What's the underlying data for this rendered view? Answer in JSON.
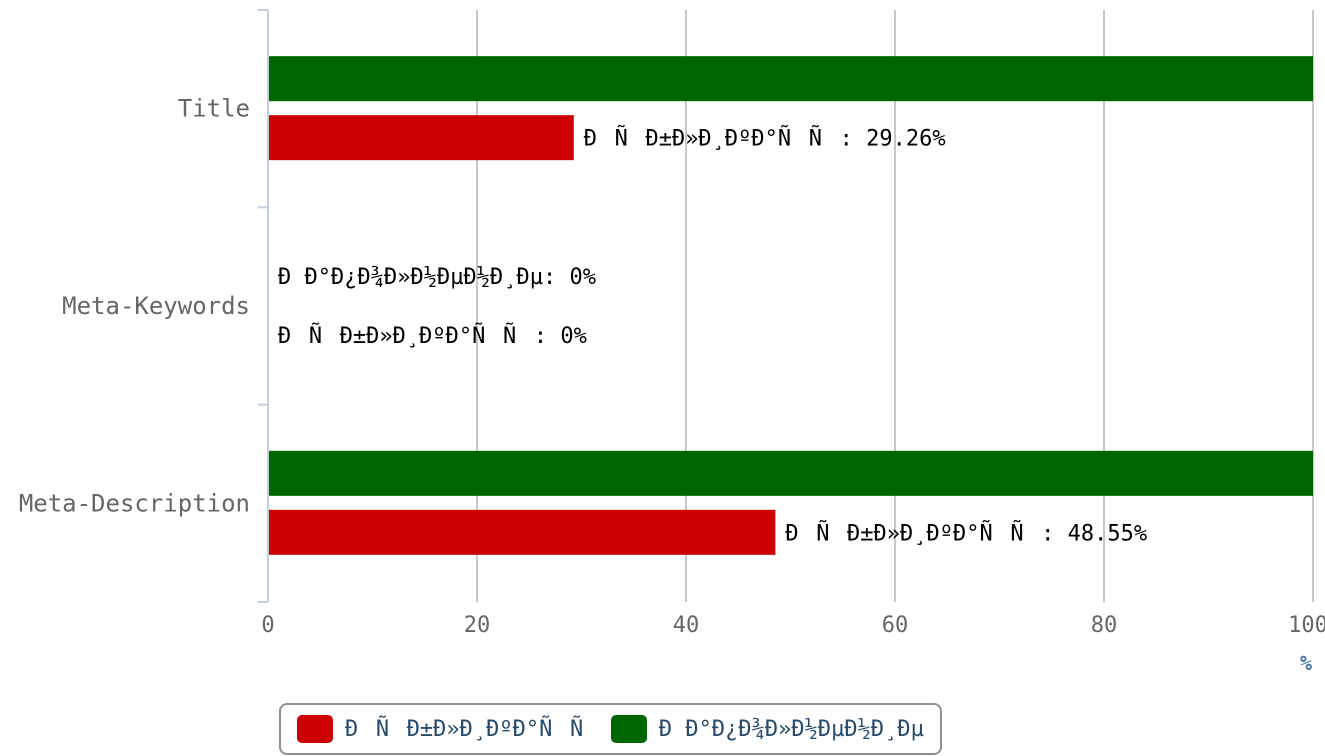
{
  "chart_data": {
    "type": "bar",
    "orientation": "horizontal",
    "categories": [
      "Title",
      "Meta-Keywords",
      "Meta-Description"
    ],
    "series": [
      {
        "name": "ÐÐ°Ð¿Ð¾Ð»Ð½ÐµÐ½Ð¸Ðµ",
        "color": "#006600",
        "values": [
          100,
          0,
          100
        ],
        "data_labels": [
          "",
          "ÐÐ°Ð¿Ð¾Ð»Ð½ÐµÐ½Ð¸Ðµ: 0%",
          ""
        ]
      },
      {
        "name": "ÐÑÐ±Ð»Ð¸ÐºÐ°ÑÑ",
        "color": "#cc0000",
        "values": [
          29.26,
          0,
          48.55
        ],
        "data_labels": [
          "ÐÑÐ±Ð»Ð¸ÐºÐ°ÑÑ: 29.26%",
          "ÐÑÐ±Ð»Ð¸ÐºÐ°ÑÑ: 0%",
          "ÐÑÐ±Ð»Ð¸ÐºÐ°ÑÑ: 48.55%"
        ]
      }
    ],
    "xlim": [
      0,
      100
    ],
    "ticks": [
      "0",
      "20",
      "40",
      "60",
      "80",
      "100"
    ],
    "unit_label": "%",
    "grid": true,
    "legend_position": "bottom-center"
  },
  "legend": [
    {
      "label": "ÐÑÐ±Ð»Ð¸ÐºÐ°ÑÑ",
      "color": "#cc0000"
    },
    {
      "label": "ÐÐ°Ð¿Ð¾Ð»Ð½ÐµÐ½Ð¸Ðµ",
      "color": "#006600"
    }
  ]
}
